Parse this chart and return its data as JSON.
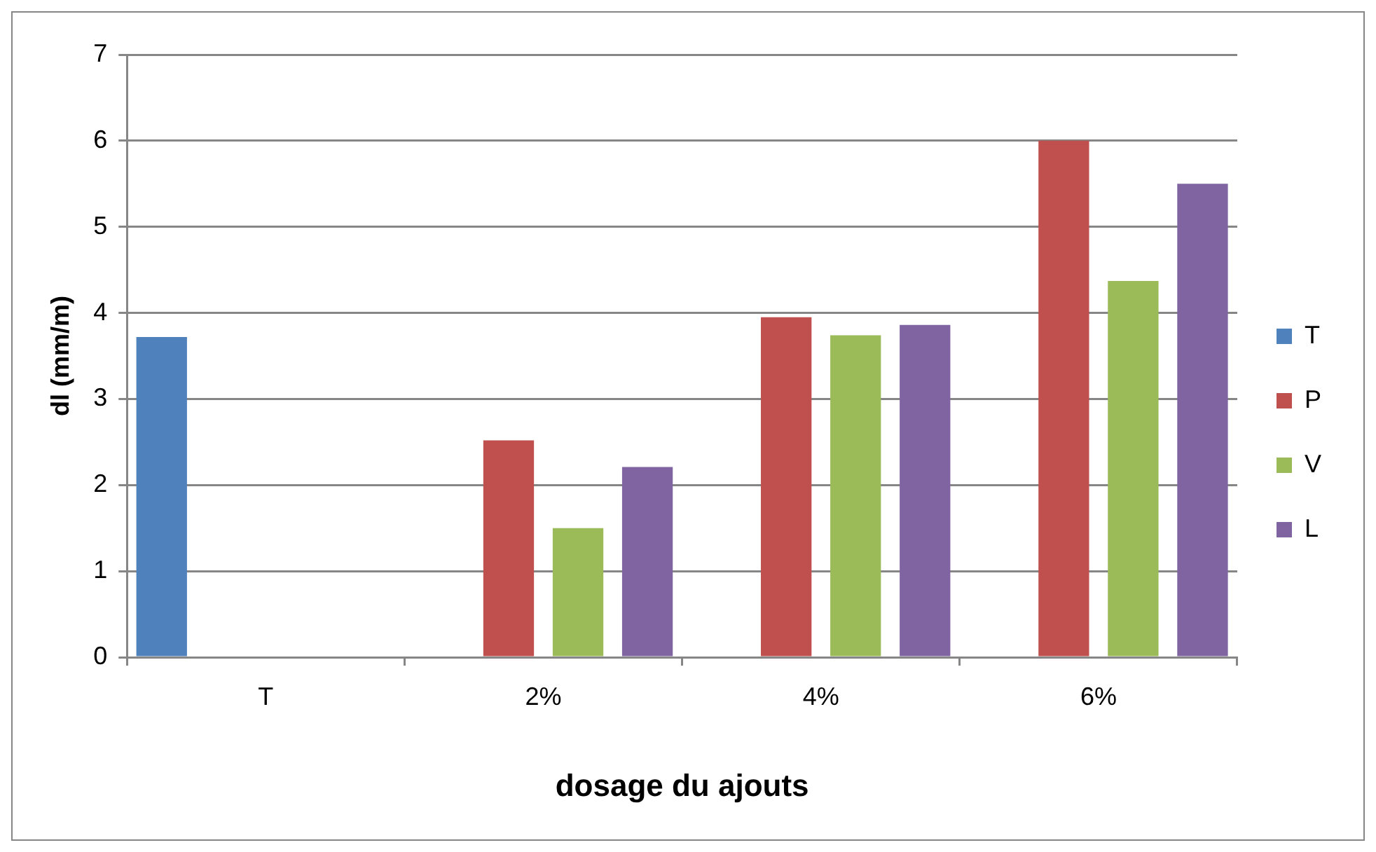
{
  "chart_data": {
    "type": "bar",
    "xlabel": "dosage du ajouts",
    "ylabel": "dl (mm/m)",
    "categories": [
      "T",
      "2%",
      "4%",
      "6%"
    ],
    "series": [
      {
        "name": "T",
        "color": "#4f81bd",
        "values": [
          3.72,
          null,
          null,
          null
        ]
      },
      {
        "name": "P",
        "color": "#c0504d",
        "values": [
          null,
          2.52,
          3.95,
          6.0
        ]
      },
      {
        "name": "V",
        "color": "#9bbb59",
        "values": [
          null,
          1.5,
          3.74,
          4.37
        ]
      },
      {
        "name": "L",
        "color": "#8064a2",
        "values": [
          null,
          2.21,
          3.86,
          5.5
        ]
      }
    ],
    "ylim": [
      0,
      7
    ],
    "yticks": [
      0,
      1,
      2,
      3,
      4,
      5,
      6,
      7
    ],
    "grid": "y",
    "legend": "right"
  }
}
